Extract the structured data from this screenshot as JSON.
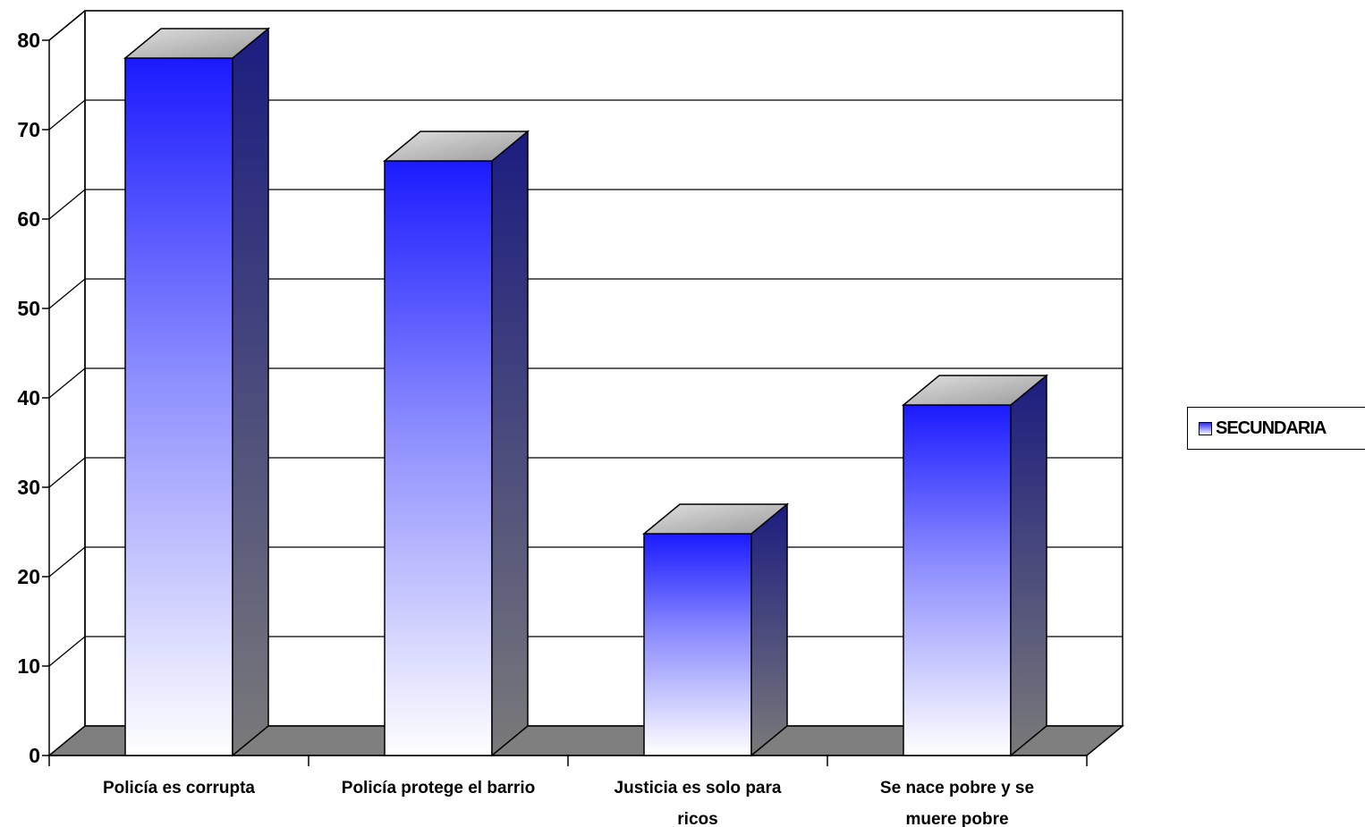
{
  "chart_data": {
    "type": "bar",
    "categories": [
      [
        "Policía es corrupta"
      ],
      [
        "Policía protege el barrio"
      ],
      [
        "Justicia es solo para",
        "ricos"
      ],
      [
        "Se nace pobre y se",
        "muere pobre"
      ]
    ],
    "series": [
      {
        "name": "SECUNDARIA",
        "values": [
          78,
          66.5,
          24.8,
          39.2
        ]
      }
    ],
    "ylim": [
      0,
      80
    ],
    "yticks": [
      0,
      10,
      20,
      30,
      40,
      50,
      60,
      70,
      80
    ],
    "grid": true,
    "legend_position": "right",
    "colors": {
      "bar_top": "#1a1aff",
      "bar_bottom": "#ffffff",
      "bar_side": "#1c1c80",
      "floor": "#7f7f7f"
    }
  }
}
